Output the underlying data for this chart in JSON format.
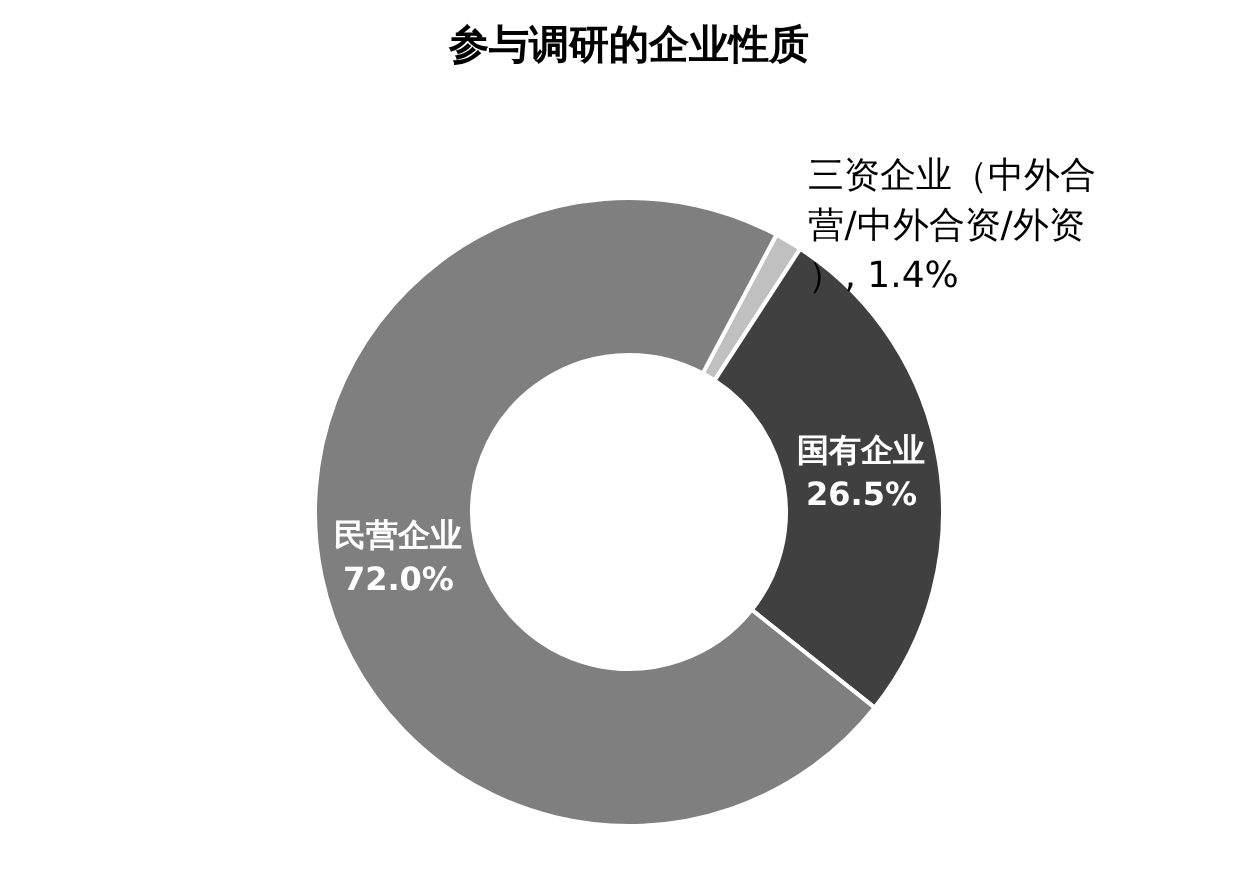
{
  "chart_data": {
    "type": "donut",
    "title": "参与调研的企业性质",
    "categories": [
      "三资企业（中外合营/中外合资/外资）",
      "国有企业",
      "民营企业"
    ],
    "values": [
      1.4,
      26.5,
      72.0
    ],
    "colors": [
      "#c0c0c0",
      "#404040",
      "#7f7f7f"
    ],
    "value_labels": [
      "1.4%",
      "26.5%",
      "72.0%"
    ],
    "legend": false
  }
}
